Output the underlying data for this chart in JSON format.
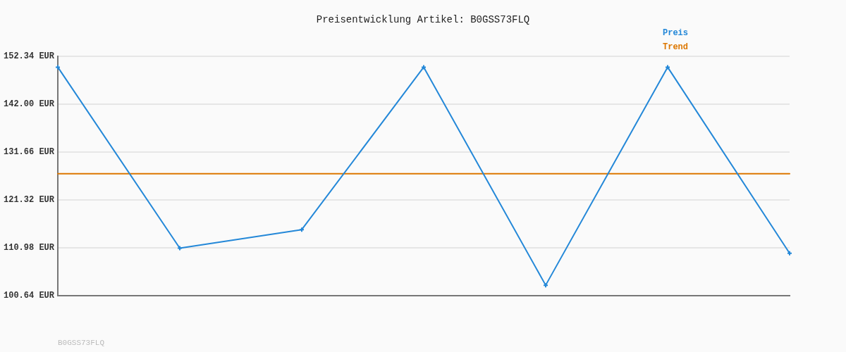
{
  "chart_data": {
    "type": "line",
    "title": "Preisentwicklung Artikel: B0GSS73FLQ",
    "categories": [
      null,
      null,
      null,
      null,
      null,
      null,
      null
    ],
    "series": [
      {
        "name": "Preis",
        "color": "#2488d8",
        "values": [
          150.0,
          110.9,
          114.9,
          150.0,
          102.9,
          150.0,
          109.8
        ]
      },
      {
        "name": "Trend",
        "color": "#dd7700",
        "values": [
          127.0,
          127.0,
          127.0,
          127.0,
          127.0,
          127.0,
          127.0
        ],
        "marker": "none"
      }
    ],
    "ylim": [
      100.64,
      152.34
    ],
    "yticks": [
      {
        "value": 100.64,
        "label": "100.64 EUR"
      },
      {
        "value": 110.98,
        "label": "110.98 EUR"
      },
      {
        "value": 121.32,
        "label": "121.32 EUR"
      },
      {
        "value": 131.66,
        "label": "131.66 EUR"
      },
      {
        "value": 142.0,
        "label": "142.00 EUR"
      },
      {
        "value": 152.34,
        "label": "152.34 EUR"
      }
    ],
    "grid": "y",
    "legend": "top right",
    "marker": "cross",
    "annotations": [
      "B0GSS73FLQ"
    ]
  }
}
